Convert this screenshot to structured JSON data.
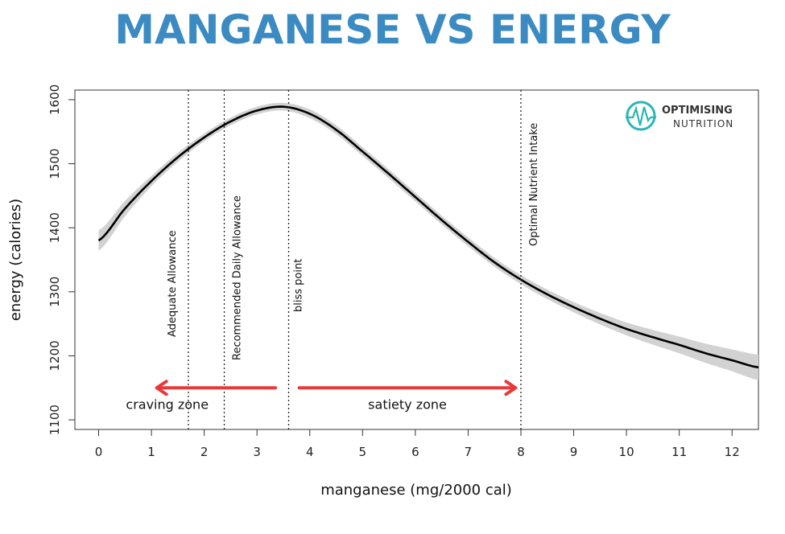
{
  "chart_data": {
    "type": "line",
    "title": "MANGANESE VS ENERGY",
    "xlabel": "manganese (mg/2000 cal)",
    "ylabel": "energy (calories)",
    "xlim": [
      -0.45,
      12.5
    ],
    "ylim": [
      1085,
      1615
    ],
    "xticks": [
      "0",
      "1",
      "2",
      "3",
      "4",
      "5",
      "6",
      "7",
      "8",
      "9",
      "10",
      "11",
      "12"
    ],
    "yticks": [
      "1100",
      "1200",
      "1300",
      "1400",
      "1500",
      "1600"
    ],
    "grid": false,
    "series": [
      {
        "x": [
          0,
          0.5,
          1,
          1.5,
          2,
          2.5,
          3,
          3.5,
          4,
          4.5,
          5,
          5.5,
          6,
          6.5,
          7,
          7.5,
          8,
          8.5,
          9,
          9.5,
          10,
          10.5,
          11,
          11.5,
          12,
          12.5
        ],
        "y": [
          1380,
          1430,
          1473,
          1510,
          1541,
          1566,
          1583,
          1589,
          1578,
          1553,
          1519,
          1484,
          1448,
          1412,
          1378,
          1346,
          1319,
          1296,
          1276,
          1258,
          1242,
          1229,
          1217,
          1204,
          1193,
          1182
        ]
      }
    ],
    "confidence_band": {
      "x": [
        0,
        1,
        2,
        3,
        3.5,
        4,
        5,
        6,
        7,
        8,
        9,
        10,
        11,
        12,
        12.5
      ],
      "halfwidth": [
        16,
        8,
        6,
        6,
        6,
        7,
        7,
        7,
        7,
        7,
        8,
        10,
        13,
        17,
        20
      ]
    },
    "vlines": [
      {
        "x": 1.7,
        "label": "Adequate Allowance"
      },
      {
        "x": 2.38,
        "label": "Recommended Daily Allowance"
      },
      {
        "x": 3.6,
        "label": "bliss point"
      },
      {
        "x": 8.0,
        "label": "Optimal Nutrient Intake"
      }
    ],
    "arrows": [
      {
        "from": 3.35,
        "to": 1.1,
        "y": 1150,
        "label": "craving zone",
        "label_x": 1.3
      },
      {
        "from": 3.8,
        "to": 7.9,
        "y": 1150,
        "label": "satiety zone",
        "label_x": 5.85
      }
    ],
    "colors": {
      "title": "#3b8bc2",
      "arrow": "#e8393a",
      "band": "#d2d2d2",
      "line": "#000000",
      "logo": "#2cb5b5"
    }
  },
  "logo": {
    "line1": "OPTIMISING",
    "line2": "NUTRITION",
    "icon": "heartbeat-logo-icon"
  }
}
